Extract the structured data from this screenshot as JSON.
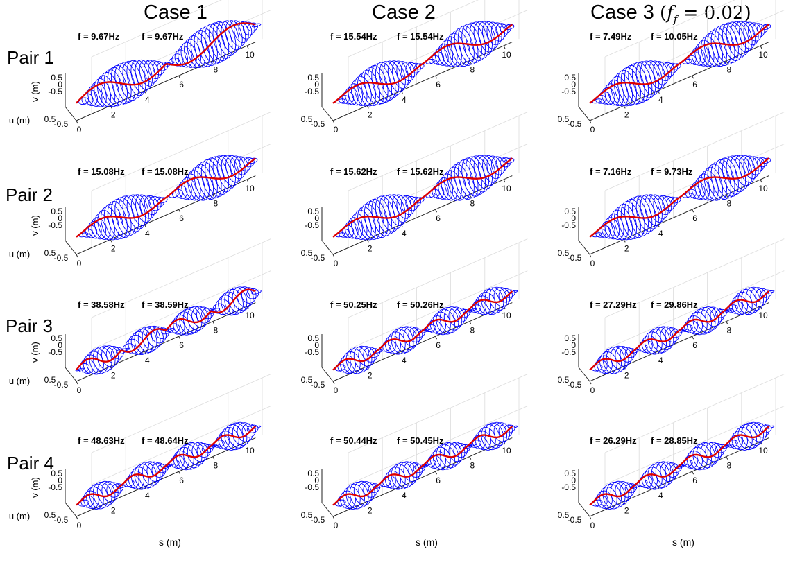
{
  "columns": [
    {
      "title": "Case 1",
      "note": ""
    },
    {
      "title": "Case 2",
      "note": ""
    },
    {
      "title": "Case 3",
      "note": "(f_f = 0.02)",
      "note_parts": {
        "lhs": "f",
        "sub": "f",
        "rhs": "= 0.02"
      }
    }
  ],
  "rows": [
    {
      "title": "Pair 1"
    },
    {
      "title": "Pair 2"
    },
    {
      "title": "Pair 3"
    },
    {
      "title": "Pair 4"
    }
  ],
  "colors": {
    "envelope": "#0000ff",
    "mode_line": "#dd0000",
    "grid": "#dcdcdc",
    "axis": "#222222"
  },
  "chart_data": [
    {
      "type": "line",
      "row": 0,
      "col": 0,
      "freq_labels": [
        "f = 9.67Hz",
        "f = 9.67Hz"
      ],
      "lobes": 2,
      "node": [],
      "xlabel": "",
      "ylabel": "v (m)",
      "zlabel": "u (m)",
      "xticks": [
        "0",
        "2",
        "4",
        "6",
        "8",
        "10"
      ],
      "yticks": [
        "0.5",
        "0",
        "-0.5"
      ],
      "zticks": [
        "0.5",
        "-0.5"
      ],
      "xlim": [
        0,
        10.5
      ]
    },
    {
      "type": "line",
      "row": 0,
      "col": 1,
      "freq_labels": [
        "f = 15.54Hz",
        "f = 15.54Hz"
      ],
      "lobes": 2,
      "node": [
        1
      ],
      "xlabel": "",
      "ylabel": "",
      "zlabel": "",
      "xticks": [
        "0",
        "2",
        "4",
        "6",
        "8",
        "10"
      ],
      "yticks": [
        "0.5",
        "0",
        "-0.5"
      ],
      "zticks": [
        "0.5",
        "-0.5"
      ],
      "xlim": [
        0,
        10.5
      ]
    },
    {
      "type": "line",
      "row": 0,
      "col": 2,
      "freq_labels": [
        "f = 7.49Hz",
        "f = 10.05Hz"
      ],
      "lobes": 2,
      "node": [
        1
      ],
      "xlabel": "",
      "ylabel": "",
      "zlabel": "",
      "xticks": [
        "0",
        "2",
        "4",
        "6",
        "8",
        "10"
      ],
      "yticks": [
        "0.5",
        "0",
        "-0.5"
      ],
      "zticks": [
        "0.5",
        "-0.5"
      ],
      "xlim": [
        0,
        10.5
      ]
    },
    {
      "type": "line",
      "row": 1,
      "col": 0,
      "freq_labels": [
        "f = 15.08Hz",
        "f = 15.08Hz"
      ],
      "lobes": 2,
      "node": [
        1
      ],
      "xlabel": "",
      "ylabel": "v (m)",
      "zlabel": "u (m)",
      "xticks": [
        "0",
        "2",
        "4",
        "6",
        "8",
        "10"
      ],
      "yticks": [
        "0.5",
        "0",
        "-0.5"
      ],
      "zticks": [
        "0.5",
        "-0.5"
      ],
      "xlim": [
        0,
        10.5
      ]
    },
    {
      "type": "line",
      "row": 1,
      "col": 1,
      "freq_labels": [
        "f = 15.62Hz",
        "f = 15.62Hz"
      ],
      "lobes": 2,
      "node": [
        1
      ],
      "xlabel": "",
      "ylabel": "",
      "zlabel": "",
      "xticks": [
        "0",
        "2",
        "4",
        "6",
        "8",
        "10"
      ],
      "yticks": [
        "0.5",
        "0",
        "-0.5"
      ],
      "zticks": [
        "0.5",
        "-0.5"
      ],
      "xlim": [
        0,
        10.5
      ]
    },
    {
      "type": "line",
      "row": 1,
      "col": 2,
      "freq_labels": [
        "f = 7.16Hz",
        "f = 9.73Hz"
      ],
      "lobes": 2,
      "node": [
        1
      ],
      "xlabel": "",
      "ylabel": "",
      "zlabel": "",
      "xticks": [
        "0",
        "2",
        "4",
        "6",
        "8",
        "10"
      ],
      "yticks": [
        "0.5",
        "0",
        "-0.5"
      ],
      "zticks": [
        "0.5",
        "-0.5"
      ],
      "xlim": [
        0,
        10.5
      ]
    },
    {
      "type": "line",
      "row": 2,
      "col": 0,
      "freq_labels": [
        "f = 38.58Hz",
        "f = 38.59Hz"
      ],
      "lobes": 4,
      "node": [],
      "xlabel": "",
      "ylabel": "v (m)",
      "zlabel": "u (m)",
      "xticks": [
        "0",
        "2",
        "4",
        "6",
        "8",
        "10"
      ],
      "yticks": [
        "0.5",
        "0",
        "-0.5"
      ],
      "zticks": [
        "0.5",
        "-0.5"
      ],
      "xlim": [
        0,
        10.5
      ]
    },
    {
      "type": "line",
      "row": 2,
      "col": 1,
      "freq_labels": [
        "f = 50.25Hz",
        "f = 50.26Hz"
      ],
      "lobes": 4,
      "node": [
        2
      ],
      "xlabel": "",
      "ylabel": "",
      "zlabel": "",
      "xticks": [
        "0",
        "2",
        "4",
        "6",
        "8",
        "10"
      ],
      "yticks": [
        "0.5",
        "0",
        "-0.5"
      ],
      "zticks": [
        "0.5",
        "-0.5"
      ],
      "xlim": [
        0,
        10.5
      ]
    },
    {
      "type": "line",
      "row": 2,
      "col": 2,
      "freq_labels": [
        "f = 27.29Hz",
        "f = 29.86Hz"
      ],
      "lobes": 4,
      "node": [
        2
      ],
      "xlabel": "",
      "ylabel": "",
      "zlabel": "",
      "xticks": [
        "0",
        "2",
        "4",
        "6",
        "8",
        "10"
      ],
      "yticks": [
        "0.5",
        "0",
        "-0.5"
      ],
      "zticks": [
        "0.5",
        "-0.5"
      ],
      "xlim": [
        0,
        10.5
      ]
    },
    {
      "type": "line",
      "row": 3,
      "col": 0,
      "freq_labels": [
        "f = 48.63Hz",
        "f = 48.64Hz"
      ],
      "lobes": 4,
      "node": [
        2
      ],
      "xlabel": "s (m)",
      "ylabel": "v (m)",
      "zlabel": "u (m)",
      "xticks": [
        "0",
        "2",
        "4",
        "6",
        "8",
        "10"
      ],
      "yticks": [
        "0.5",
        "0",
        "-0.5"
      ],
      "zticks": [
        "0.5",
        "-0.5"
      ],
      "xlim": [
        0,
        10.5
      ]
    },
    {
      "type": "line",
      "row": 3,
      "col": 1,
      "freq_labels": [
        "f = 50.44Hz",
        "f = 50.45Hz"
      ],
      "lobes": 4,
      "node": [
        2
      ],
      "xlabel": "s (m)",
      "ylabel": "",
      "zlabel": "",
      "xticks": [
        "0",
        "2",
        "4",
        "6",
        "8",
        "10"
      ],
      "yticks": [
        "0.5",
        "0",
        "-0.5"
      ],
      "zticks": [
        "0.5",
        "-0.5"
      ],
      "xlim": [
        0,
        10.5
      ]
    },
    {
      "type": "line",
      "row": 3,
      "col": 2,
      "freq_labels": [
        "f = 26.29Hz",
        "f = 28.85Hz"
      ],
      "lobes": 4,
      "node": [
        2
      ],
      "xlabel": "s (m)",
      "ylabel": "",
      "zlabel": "",
      "xticks": [
        "0",
        "2",
        "4",
        "6",
        "8",
        "10"
      ],
      "yticks": [
        "0.5",
        "0",
        "-0.5"
      ],
      "zticks": [
        "0.5",
        "-0.5"
      ],
      "xlim": [
        0,
        10.5
      ]
    }
  ]
}
